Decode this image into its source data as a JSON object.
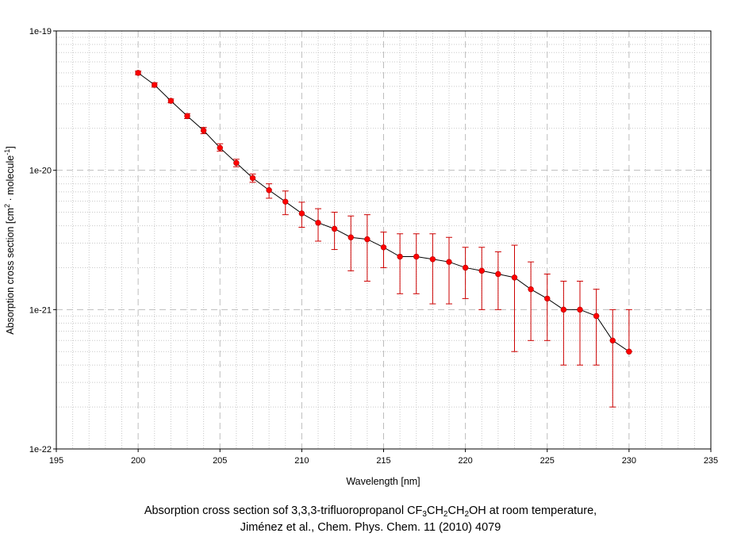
{
  "chart_data": {
    "type": "scatter",
    "title": "",
    "xlabel": "Wavelength [nm]",
    "ylabel": {
      "prefix": "Absorption cross section [cm",
      "sup1": "2",
      "middle": " · molecule",
      "sup2": "-1",
      "suffix": "]"
    },
    "xlim": [
      195,
      235
    ],
    "ylim": [
      1e-22,
      1e-19
    ],
    "yscale": "log",
    "grid": true,
    "legend": "none",
    "x_ticks": [
      "195",
      "200",
      "205",
      "210",
      "215",
      "220",
      "225",
      "230",
      "235"
    ],
    "y_ticks": [
      {
        "value": 1e-19,
        "label": "1e-19"
      },
      {
        "value": 1e-20,
        "label": "1e-20"
      },
      {
        "value": 1e-21,
        "label": "1e-21"
      },
      {
        "value": 1e-22,
        "label": "1e-22"
      }
    ],
    "marker_color": "#ff0000",
    "line_color": "#000000",
    "errorbar_color": "#cc0000",
    "series": [
      {
        "x": [
          200,
          201,
          202,
          203,
          204,
          205,
          206,
          207,
          208,
          209,
          210,
          211,
          212,
          213,
          214,
          215,
          216,
          217,
          218,
          219,
          220,
          221,
          222,
          223,
          224,
          225,
          226,
          227,
          228,
          229,
          230
        ],
        "y": [
          5e-20,
          4.1e-20,
          3.15e-20,
          2.45e-20,
          1.93e-20,
          1.45e-20,
          1.13e-20,
          8.8e-21,
          7.2e-21,
          5.95e-21,
          4.9e-21,
          4.2e-21,
          3.8e-21,
          3.3e-21,
          3.2e-21,
          2.8e-21,
          2.4e-21,
          2.4e-21,
          2.3e-21,
          2.2e-21,
          2e-21,
          1.9e-21,
          1.8e-21,
          1.7e-21,
          1.4e-21,
          1.2e-21,
          1e-21,
          1e-21,
          9e-22,
          6e-22,
          5e-22
        ],
        "y_err_low": [
          4.85e-20,
          3.95e-20,
          3.05e-20,
          2.35e-20,
          1.83e-20,
          1.37e-20,
          1.06e-20,
          8.2e-21,
          6.3e-21,
          4.8e-21,
          3.9e-21,
          3.1e-21,
          2.7e-21,
          1.9e-21,
          1.6e-21,
          2e-21,
          1.3e-21,
          1.3e-21,
          1.1e-21,
          1.1e-21,
          1.2e-21,
          1e-21,
          1e-21,
          5e-22,
          6e-22,
          6e-22,
          4e-22,
          4e-22,
          4e-22,
          2e-22,
          5e-22
        ],
        "y_err_high": [
          5.15e-20,
          4.25e-20,
          3.25e-20,
          2.55e-20,
          2.03e-20,
          1.55e-20,
          1.2e-20,
          9.4e-21,
          8e-21,
          7.1e-21,
          5.9e-21,
          5.3e-21,
          5e-21,
          4.7e-21,
          4.8e-21,
          3.6e-21,
          3.5e-21,
          3.5e-21,
          3.5e-21,
          3.3e-21,
          2.8e-21,
          2.8e-21,
          2.6e-21,
          2.9e-21,
          2.2e-21,
          1.8e-21,
          1.6e-21,
          1.6e-21,
          1.4e-21,
          1e-21,
          1e-21
        ]
      }
    ]
  },
  "caption": {
    "line1": {
      "prefix": "Absorption cross section sof 3,3,3-trifluoropropanol CF",
      "sub1": "3",
      "mid1": "CH",
      "sub2": "2",
      "mid2": "CH",
      "sub3": "2",
      "suffix": "OH at room temperature,"
    },
    "line2": "Jiménez et al., Chem. Phys. Chem. 11 (2010) 4079"
  }
}
